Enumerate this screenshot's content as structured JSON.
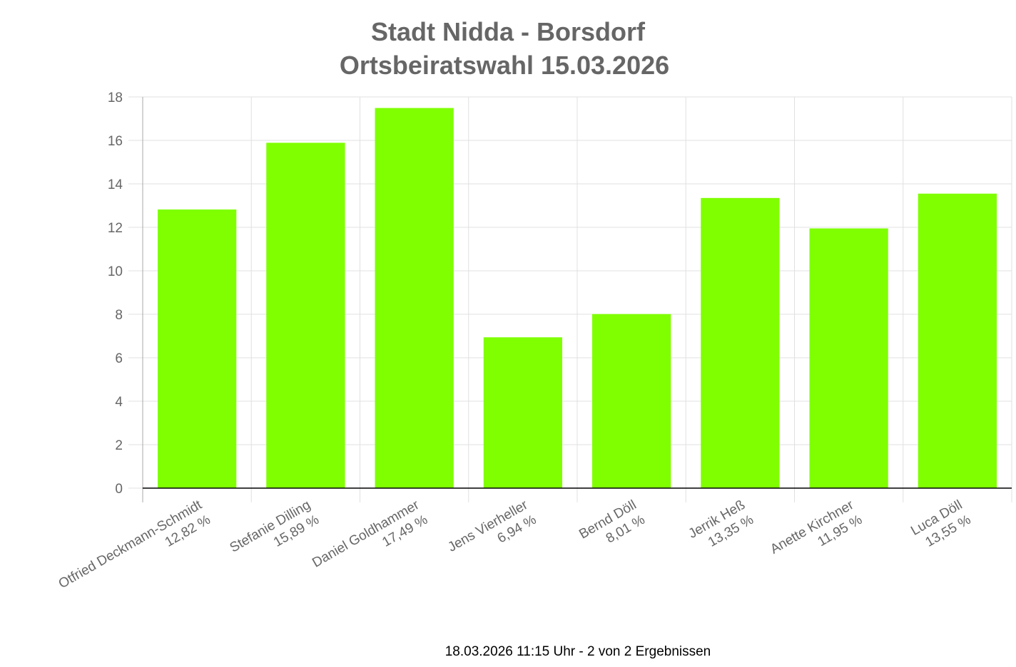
{
  "chart_data": {
    "type": "bar",
    "title": [
      "Stadt Nidda - Borsdorf",
      "Ortsbeiratswahl 15.03.2026"
    ],
    "categories": [
      "Otfried Deckmann-Schmidt",
      "Stefanie Dilling",
      "Daniel Goldhammer",
      "Jens Vierheller",
      "Bernd Döll",
      "Jerrik Heß",
      "Anette Kirchner",
      "Luca Döll"
    ],
    "category_values_label": [
      "12,82 %",
      "15,89 %",
      "17,49 %",
      "6,94 %",
      "8,01 %",
      "13,35 %",
      "11,95 %",
      "13,55 %"
    ],
    "values": [
      12.82,
      15.89,
      17.49,
      6.94,
      8.01,
      13.35,
      11.95,
      13.55
    ],
    "xlabel": "",
    "ylabel": "",
    "ylim": [
      0,
      18
    ],
    "yticks": [
      0,
      2,
      4,
      6,
      8,
      10,
      12,
      14,
      16,
      18
    ],
    "grid": true,
    "legend": "none",
    "bar_color": "#7fff00"
  },
  "footer": "18.03.2026 11:15 Uhr - 2 von 2 Ergebnissen"
}
